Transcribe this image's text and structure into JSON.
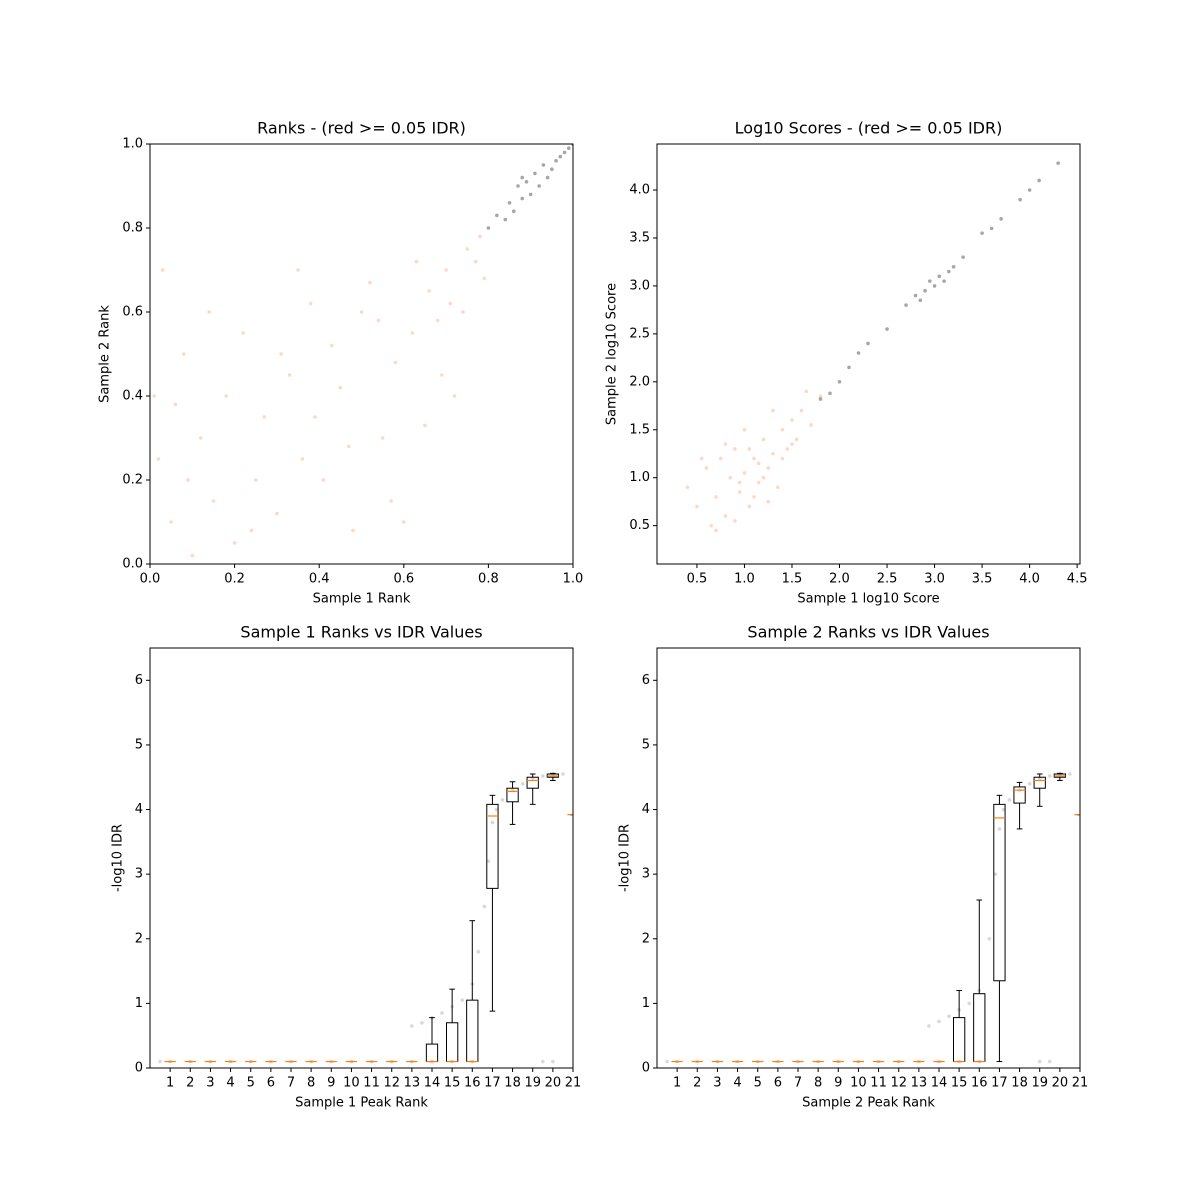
{
  "chart_data": [
    {
      "type": "scatter",
      "title": "Ranks - (red >= 0.05 IDR)",
      "xlabel": "Sample 1 Rank",
      "ylabel": "Sample 2 Rank",
      "xlim": [
        0,
        1
      ],
      "ylim": [
        0,
        1
      ],
      "xticks": [
        {
          "value": 0,
          "label": "0.0"
        },
        0.2,
        0.4,
        0.6,
        0.8,
        {
          "value": 1,
          "label": "1.0"
        }
      ],
      "yticks": [
        {
          "value": 0,
          "label": "0.0"
        },
        0.2,
        0.4,
        0.6,
        0.8,
        {
          "value": 1,
          "label": "1.0"
        }
      ],
      "series": [
        {
          "color": "#fc8d6a",
          "alpha": 0.35,
          "x": [
            0.05,
            0.12,
            0.2,
            0.33,
            0.41,
            0.5,
            0.62,
            0.7,
            0.75,
            0.08,
            0.15,
            0.27,
            0.36,
            0.45,
            0.55,
            0.66,
            0.72,
            0.78,
            0.03,
            0.1,
            0.22,
            0.3,
            0.38,
            0.48,
            0.58,
            0.65,
            0.74,
            0.02,
            0.18,
            0.25,
            0.43,
            0.52,
            0.6,
            0.68,
            0.77,
            0.06,
            0.14,
            0.31,
            0.47,
            0.57,
            0.69,
            0.79,
            0.09,
            0.24,
            0.39,
            0.54,
            0.63,
            0.71,
            0.01,
            0.35
          ],
          "values": [
            0.1,
            0.3,
            0.05,
            0.45,
            0.2,
            0.6,
            0.55,
            0.7,
            0.75,
            0.5,
            0.15,
            0.35,
            0.25,
            0.42,
            0.3,
            0.65,
            0.4,
            0.78,
            0.7,
            0.02,
            0.55,
            0.12,
            0.62,
            0.08,
            0.48,
            0.33,
            0.6,
            0.25,
            0.4,
            0.2,
            0.52,
            0.67,
            0.1,
            0.58,
            0.72,
            0.38,
            0.6,
            0.5,
            0.28,
            0.15,
            0.45,
            0.68,
            0.2,
            0.08,
            0.35,
            0.58,
            0.72,
            0.62,
            0.4,
            0.7
          ]
        },
        {
          "color": "#000000",
          "alpha": 0.35,
          "x": [
            0.8,
            0.82,
            0.84,
            0.85,
            0.86,
            0.87,
            0.88,
            0.89,
            0.9,
            0.91,
            0.92,
            0.93,
            0.94,
            0.95,
            0.96,
            0.97,
            0.98,
            0.99,
            1.0,
            0.88
          ],
          "values": [
            0.8,
            0.83,
            0.82,
            0.86,
            0.84,
            0.9,
            0.87,
            0.91,
            0.88,
            0.93,
            0.9,
            0.95,
            0.92,
            0.94,
            0.96,
            0.97,
            0.98,
            0.99,
            1.0,
            0.92
          ]
        }
      ]
    },
    {
      "type": "scatter",
      "title": "Log10 Scores - (red >= 0.05 IDR)",
      "xlabel": "Sample 1 log10 Score",
      "ylabel": "Sample 2 log10 Score",
      "xlim": [
        0.08,
        4.53
      ],
      "ylim": [
        0.1,
        4.48
      ],
      "xticks": [
        0.5,
        {
          "value": 1,
          "label": "1.0"
        },
        1.5,
        {
          "value": 2,
          "label": "2.0"
        },
        2.5,
        {
          "value": 3,
          "label": "3.0"
        },
        3.5,
        {
          "value": 4,
          "label": "4.0"
        },
        4.5
      ],
      "yticks": [
        0.5,
        {
          "value": 1,
          "label": "1.0"
        },
        1.5,
        {
          "value": 2,
          "label": "2.0"
        },
        2.5,
        {
          "value": 3,
          "label": "3.0"
        },
        3.5,
        {
          "value": 4,
          "label": "4.0"
        }
      ],
      "series": [
        {
          "color": "#fc8d6a",
          "alpha": 0.35,
          "x": [
            0.4,
            0.5,
            0.6,
            0.7,
            0.75,
            0.8,
            0.85,
            0.9,
            0.95,
            1.0,
            1.05,
            1.1,
            1.15,
            1.2,
            1.25,
            1.3,
            1.35,
            1.4,
            1.45,
            1.5,
            1.55,
            1.6,
            1.7,
            1.8,
            0.65,
            0.9,
            1.0,
            1.1,
            1.2,
            0.8,
            1.3,
            1.4,
            0.55,
            0.95,
            1.15,
            1.25,
            1.5,
            1.65,
            0.7,
            1.05
          ],
          "values": [
            0.9,
            0.7,
            1.1,
            0.8,
            1.2,
            0.6,
            1.0,
            1.3,
            0.85,
            1.05,
            0.7,
            1.2,
            0.95,
            1.4,
            1.1,
            1.25,
            0.9,
            1.5,
            1.3,
            1.6,
            1.4,
            1.7,
            1.55,
            1.85,
            0.5,
            0.55,
            1.5,
            0.8,
            1.0,
            1.35,
            1.7,
            1.2,
            1.2,
            0.95,
            1.15,
            0.75,
            1.35,
            1.9,
            0.45,
            1.3
          ]
        },
        {
          "color": "#000000",
          "alpha": 0.35,
          "x": [
            1.8,
            1.9,
            2.0,
            2.1,
            2.2,
            2.3,
            2.5,
            2.7,
            2.8,
            2.9,
            2.95,
            3.0,
            3.05,
            3.1,
            3.15,
            3.2,
            3.3,
            3.5,
            3.6,
            3.7,
            3.9,
            4.0,
            4.1,
            4.3,
            2.85
          ],
          "values": [
            1.82,
            1.88,
            2.0,
            2.15,
            2.3,
            2.4,
            2.55,
            2.8,
            2.9,
            2.95,
            3.05,
            3.0,
            3.1,
            3.05,
            3.15,
            3.2,
            3.3,
            3.55,
            3.6,
            3.7,
            3.9,
            4.0,
            4.1,
            4.28,
            2.85
          ]
        }
      ]
    },
    {
      "type": "box",
      "title": "Sample 1 Ranks vs IDR Values",
      "xlabel": "Sample 1 Peak Rank",
      "ylabel": "-log10 IDR",
      "xlim": [
        0,
        21
      ],
      "ylim": [
        0,
        6.5
      ],
      "xticks": [
        1,
        2,
        3,
        4,
        5,
        6,
        7,
        8,
        9,
        10,
        11,
        12,
        13,
        14,
        15,
        16,
        17,
        18,
        19,
        20,
        21
      ],
      "yticks": [
        0,
        1,
        2,
        3,
        4,
        5,
        6
      ],
      "whislo": [
        0.1,
        0.1,
        0.1,
        0.1,
        0.1,
        0.1,
        0.1,
        0.1,
        0.1,
        0.1,
        0.1,
        0.1,
        0.1,
        0.1,
        0.1,
        0.1,
        0.88,
        3.77,
        4.08,
        4.45,
        3.92
      ],
      "q1": [
        0.1,
        0.1,
        0.1,
        0.1,
        0.1,
        0.1,
        0.1,
        0.1,
        0.1,
        0.1,
        0.1,
        0.1,
        0.1,
        0.1,
        0.1,
        0.1,
        2.78,
        4.12,
        4.33,
        4.5,
        3.92
      ],
      "median": [
        0.1,
        0.1,
        0.1,
        0.1,
        0.1,
        0.1,
        0.1,
        0.1,
        0.1,
        0.1,
        0.1,
        0.1,
        0.1,
        0.1,
        0.1,
        0.1,
        3.9,
        4.28,
        4.45,
        4.52,
        3.92
      ],
      "q3": [
        0.1,
        0.1,
        0.1,
        0.1,
        0.1,
        0.1,
        0.1,
        0.1,
        0.1,
        0.1,
        0.1,
        0.1,
        0.1,
        0.37,
        0.7,
        1.05,
        4.08,
        4.33,
        4.5,
        4.55,
        3.92
      ],
      "whishi": [
        0.1,
        0.1,
        0.1,
        0.1,
        0.1,
        0.1,
        0.1,
        0.1,
        0.1,
        0.1,
        0.1,
        0.1,
        0.1,
        0.78,
        1.22,
        2.28,
        4.22,
        4.43,
        4.55,
        4.56,
        3.92
      ],
      "box_color": "#000000",
      "median_color": "#ff7f0e",
      "points": {
        "color": "#808080",
        "alpha": 0.3,
        "x": [
          0.5,
          1,
          2,
          3,
          4,
          5,
          6,
          7,
          8,
          9,
          10,
          11,
          12,
          13,
          14,
          15,
          16,
          13,
          13.5,
          14,
          14.5,
          15,
          15.5,
          16,
          16.3,
          16.6,
          16.8,
          17,
          17.2,
          17.5,
          18,
          18.5,
          19,
          19.5,
          20,
          20.5,
          19.5,
          20
        ],
        "values": [
          0.1,
          0.1,
          0.1,
          0.1,
          0.1,
          0.1,
          0.1,
          0.1,
          0.1,
          0.1,
          0.1,
          0.1,
          0.1,
          0.1,
          0.1,
          0.1,
          0.1,
          0.65,
          0.7,
          0.78,
          0.85,
          0.95,
          1.05,
          1.3,
          1.8,
          2.5,
          3.2,
          3.8,
          4.0,
          4.15,
          4.3,
          4.4,
          4.48,
          4.52,
          4.55,
          4.55,
          0.1,
          0.1
        ]
      }
    },
    {
      "type": "box",
      "title": "Sample 2 Ranks vs IDR Values",
      "xlabel": "Sample 2 Peak Rank",
      "ylabel": "-log10 IDR",
      "xlim": [
        0,
        21
      ],
      "ylim": [
        0,
        6.5
      ],
      "xticks": [
        1,
        2,
        3,
        4,
        5,
        6,
        7,
        8,
        9,
        10,
        11,
        12,
        13,
        14,
        15,
        16,
        17,
        18,
        19,
        20,
        21
      ],
      "yticks": [
        0,
        1,
        2,
        3,
        4,
        5,
        6
      ],
      "whislo": [
        0.1,
        0.1,
        0.1,
        0.1,
        0.1,
        0.1,
        0.1,
        0.1,
        0.1,
        0.1,
        0.1,
        0.1,
        0.1,
        0.1,
        0.1,
        0.1,
        0.1,
        3.7,
        4.05,
        4.45,
        3.92
      ],
      "q1": [
        0.1,
        0.1,
        0.1,
        0.1,
        0.1,
        0.1,
        0.1,
        0.1,
        0.1,
        0.1,
        0.1,
        0.1,
        0.1,
        0.1,
        0.1,
        0.1,
        1.35,
        4.1,
        4.33,
        4.5,
        3.92
      ],
      "median": [
        0.1,
        0.1,
        0.1,
        0.1,
        0.1,
        0.1,
        0.1,
        0.1,
        0.1,
        0.1,
        0.1,
        0.1,
        0.1,
        0.1,
        0.1,
        0.1,
        3.87,
        4.3,
        4.45,
        4.52,
        3.92
      ],
      "q3": [
        0.1,
        0.1,
        0.1,
        0.1,
        0.1,
        0.1,
        0.1,
        0.1,
        0.1,
        0.1,
        0.1,
        0.1,
        0.1,
        0.1,
        0.78,
        1.15,
        4.08,
        4.35,
        4.5,
        4.55,
        3.92
      ],
      "whishi": [
        0.1,
        0.1,
        0.1,
        0.1,
        0.1,
        0.1,
        0.1,
        0.1,
        0.1,
        0.1,
        0.1,
        0.1,
        0.1,
        0.1,
        1.2,
        2.6,
        4.22,
        4.42,
        4.55,
        4.56,
        3.92
      ],
      "box_color": "#000000",
      "median_color": "#ff7f0e",
      "points": {
        "color": "#808080",
        "alpha": 0.3,
        "x": [
          0.5,
          1,
          2,
          3,
          4,
          5,
          6,
          7,
          8,
          9,
          10,
          11,
          12,
          13,
          14,
          15,
          16,
          13.5,
          14,
          14.5,
          15,
          15.5,
          16,
          16.5,
          16.8,
          17,
          17.2,
          17.5,
          18,
          18.5,
          19,
          19.5,
          20,
          20.5,
          19,
          19.5
        ],
        "values": [
          0.1,
          0.1,
          0.1,
          0.1,
          0.1,
          0.1,
          0.1,
          0.1,
          0.1,
          0.1,
          0.1,
          0.1,
          0.1,
          0.1,
          0.1,
          0.1,
          0.1,
          0.65,
          0.72,
          0.8,
          0.9,
          1.0,
          1.2,
          2.0,
          3.0,
          3.7,
          4.0,
          4.15,
          4.3,
          4.4,
          4.48,
          4.52,
          4.55,
          4.55,
          0.1,
          0.1
        ]
      }
    }
  ]
}
